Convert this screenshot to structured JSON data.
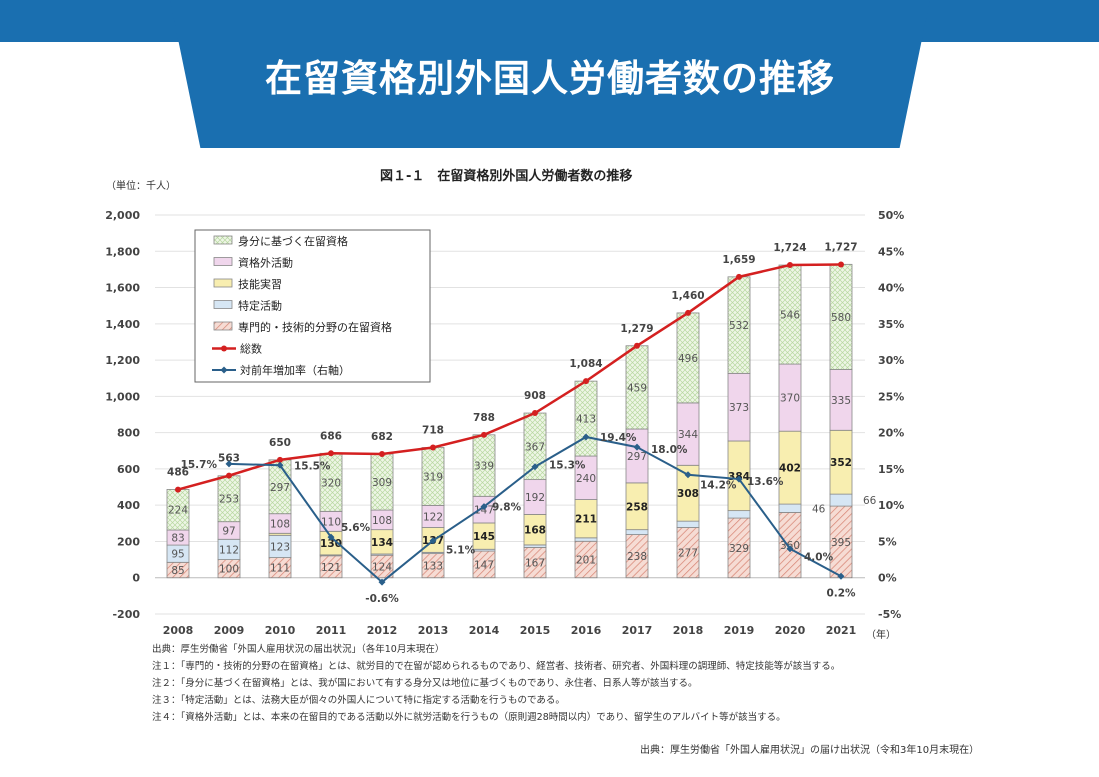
{
  "header": {
    "title": "在留資格別外国人労働者数の推移"
  },
  "chart_data": {
    "type": "bar",
    "title": "図１-１　在留資格別外国人労働者数の推移",
    "unit_label": "（単位：千人）",
    "x_unit": "（年）",
    "categories": [
      "2008",
      "2009",
      "2010",
      "2011",
      "2012",
      "2013",
      "2014",
      "2015",
      "2016",
      "2017",
      "2018",
      "2019",
      "2020",
      "2021"
    ],
    "ylim": [
      -200,
      2000
    ],
    "yticks": [
      "2,000",
      "1,800",
      "1,600",
      "1,400",
      "1,200",
      "1,000",
      "800",
      "600",
      "400",
      "200",
      "0",
      "-200"
    ],
    "y2lim": [
      -5,
      50
    ],
    "y2ticks": [
      "50%",
      "45%",
      "40%",
      "35%",
      "30%",
      "25%",
      "20%",
      "15%",
      "10%",
      "5%",
      "0%",
      "-5%"
    ],
    "stacked": true,
    "series": [
      {
        "name": "専門的・技術的分野の在留資格",
        "color": "#e8a89a",
        "values": [
          85,
          100,
          111,
          121,
          124,
          133,
          147,
          167,
          201,
          238,
          277,
          329,
          360,
          395
        ],
        "labels": [
          "85",
          "100",
          "111",
          "121",
          "124",
          "133",
          "147",
          "167",
          "201",
          "238",
          "277",
          "329",
          "360",
          "395"
        ]
      },
      {
        "name": "特定活動",
        "color": "#d6e6f4",
        "values": [
          95,
          112,
          123,
          5,
          7,
          7,
          10,
          14,
          19,
          27,
          35,
          41,
          46,
          66
        ],
        "labels": [
          "95",
          "112",
          "123",
          "",
          "",
          "",
          "",
          "",
          "",
          "",
          "",
          "",
          "46",
          "66"
        ]
      },
      {
        "name": "技能実習",
        "color": "#f8eeb0",
        "values": [
          0,
          0,
          11,
          130,
          134,
          137,
          145,
          168,
          211,
          258,
          308,
          384,
          402,
          352
        ],
        "labels": [
          "",
          "",
          "",
          "130",
          "134",
          "137",
          "145",
          "168",
          "211",
          "258",
          "308",
          "384",
          "402",
          "352"
        ]
      },
      {
        "name": "資格外活動",
        "color": "#f0d6ec",
        "values": [
          83,
          97,
          108,
          110,
          108,
          122,
          147,
          192,
          240,
          297,
          344,
          373,
          370,
          335
        ],
        "labels": [
          "83",
          "97",
          "108",
          "110",
          "108",
          "122",
          "147",
          "192",
          "240",
          "297",
          "344",
          "373",
          "370",
          "335"
        ]
      },
      {
        "name": "身分に基づく在留資格",
        "color": "#e4f0d8",
        "values": [
          224,
          253,
          297,
          320,
          309,
          319,
          339,
          367,
          413,
          459,
          496,
          532,
          546,
          580
        ],
        "labels": [
          "224",
          "253",
          "297",
          "320",
          "309",
          "319",
          "339",
          "367",
          "413",
          "459",
          "496",
          "532",
          "546",
          "580"
        ]
      }
    ],
    "total": {
      "name": "総数",
      "color": "#d42020",
      "values": [
        486,
        563,
        650,
        686,
        682,
        718,
        788,
        908,
        1084,
        1279,
        1460,
        1659,
        1724,
        1727
      ],
      "labels": [
        "486",
        "563",
        "650",
        "686",
        "682",
        "718",
        "788",
        "908",
        "1,084",
        "1,279",
        "1,460",
        "1,659",
        "1,724",
        "1,727"
      ]
    },
    "growth": {
      "name": "対前年増加率（右軸）",
      "color": "#2a5f8a",
      "values": [
        null,
        15.7,
        15.5,
        5.6,
        -0.6,
        5.1,
        9.8,
        15.3,
        19.4,
        18.0,
        14.2,
        13.6,
        4.0,
        0.2
      ],
      "labels": [
        "",
        "15.7%",
        "15.5%",
        "5.6%",
        "-0.6%",
        "5.1%",
        "9.8%",
        "15.3%",
        "19.4%",
        "18.0%",
        "14.2%",
        "13.6%",
        "4.0%",
        "0.2%"
      ]
    },
    "legend_position": "top-left",
    "grid": true
  },
  "notes": [
    "出典：厚生労働省「外国人雇用状況の届出状況」（各年10月末現在）",
    "注１：「専門的・技術的分野の在留資格」とは、就労目的で在留が認められるものであり、経営者、技術者、研究者、外国料理の調理師、特定技能等が該当する。",
    "注２：「身分に基づく在留資格」とは、我が国において有する身分又は地位に基づくものであり、永住者、日系人等が該当する。",
    "注３：「特定活動」とは、法務大臣が個々の外国人について特に指定する活動を行うものである。",
    "注４：「資格外活動」とは、本来の在留目的である活動以外に就労活動を行うもの（原則週28時間以内）であり、留学生のアルバイト等が該当する。"
  ],
  "source": "出典：厚生労働省「外国人雇用状況」の届け出状況（令和3年10月末現在）"
}
